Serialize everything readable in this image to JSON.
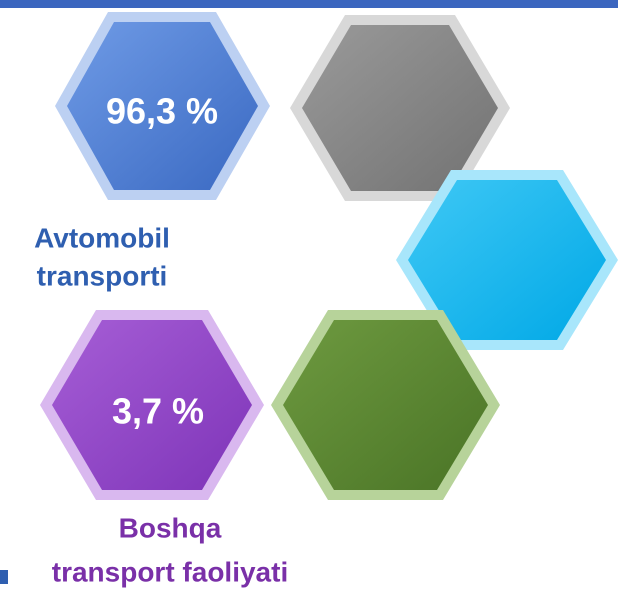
{
  "items": [
    {
      "value": "96,3 %",
      "label": [
        "Avtomobil",
        "transporti"
      ]
    },
    {
      "value": "3,7 %",
      "label": [
        "Boshqa",
        "transport faoliyati"
      ]
    }
  ]
}
